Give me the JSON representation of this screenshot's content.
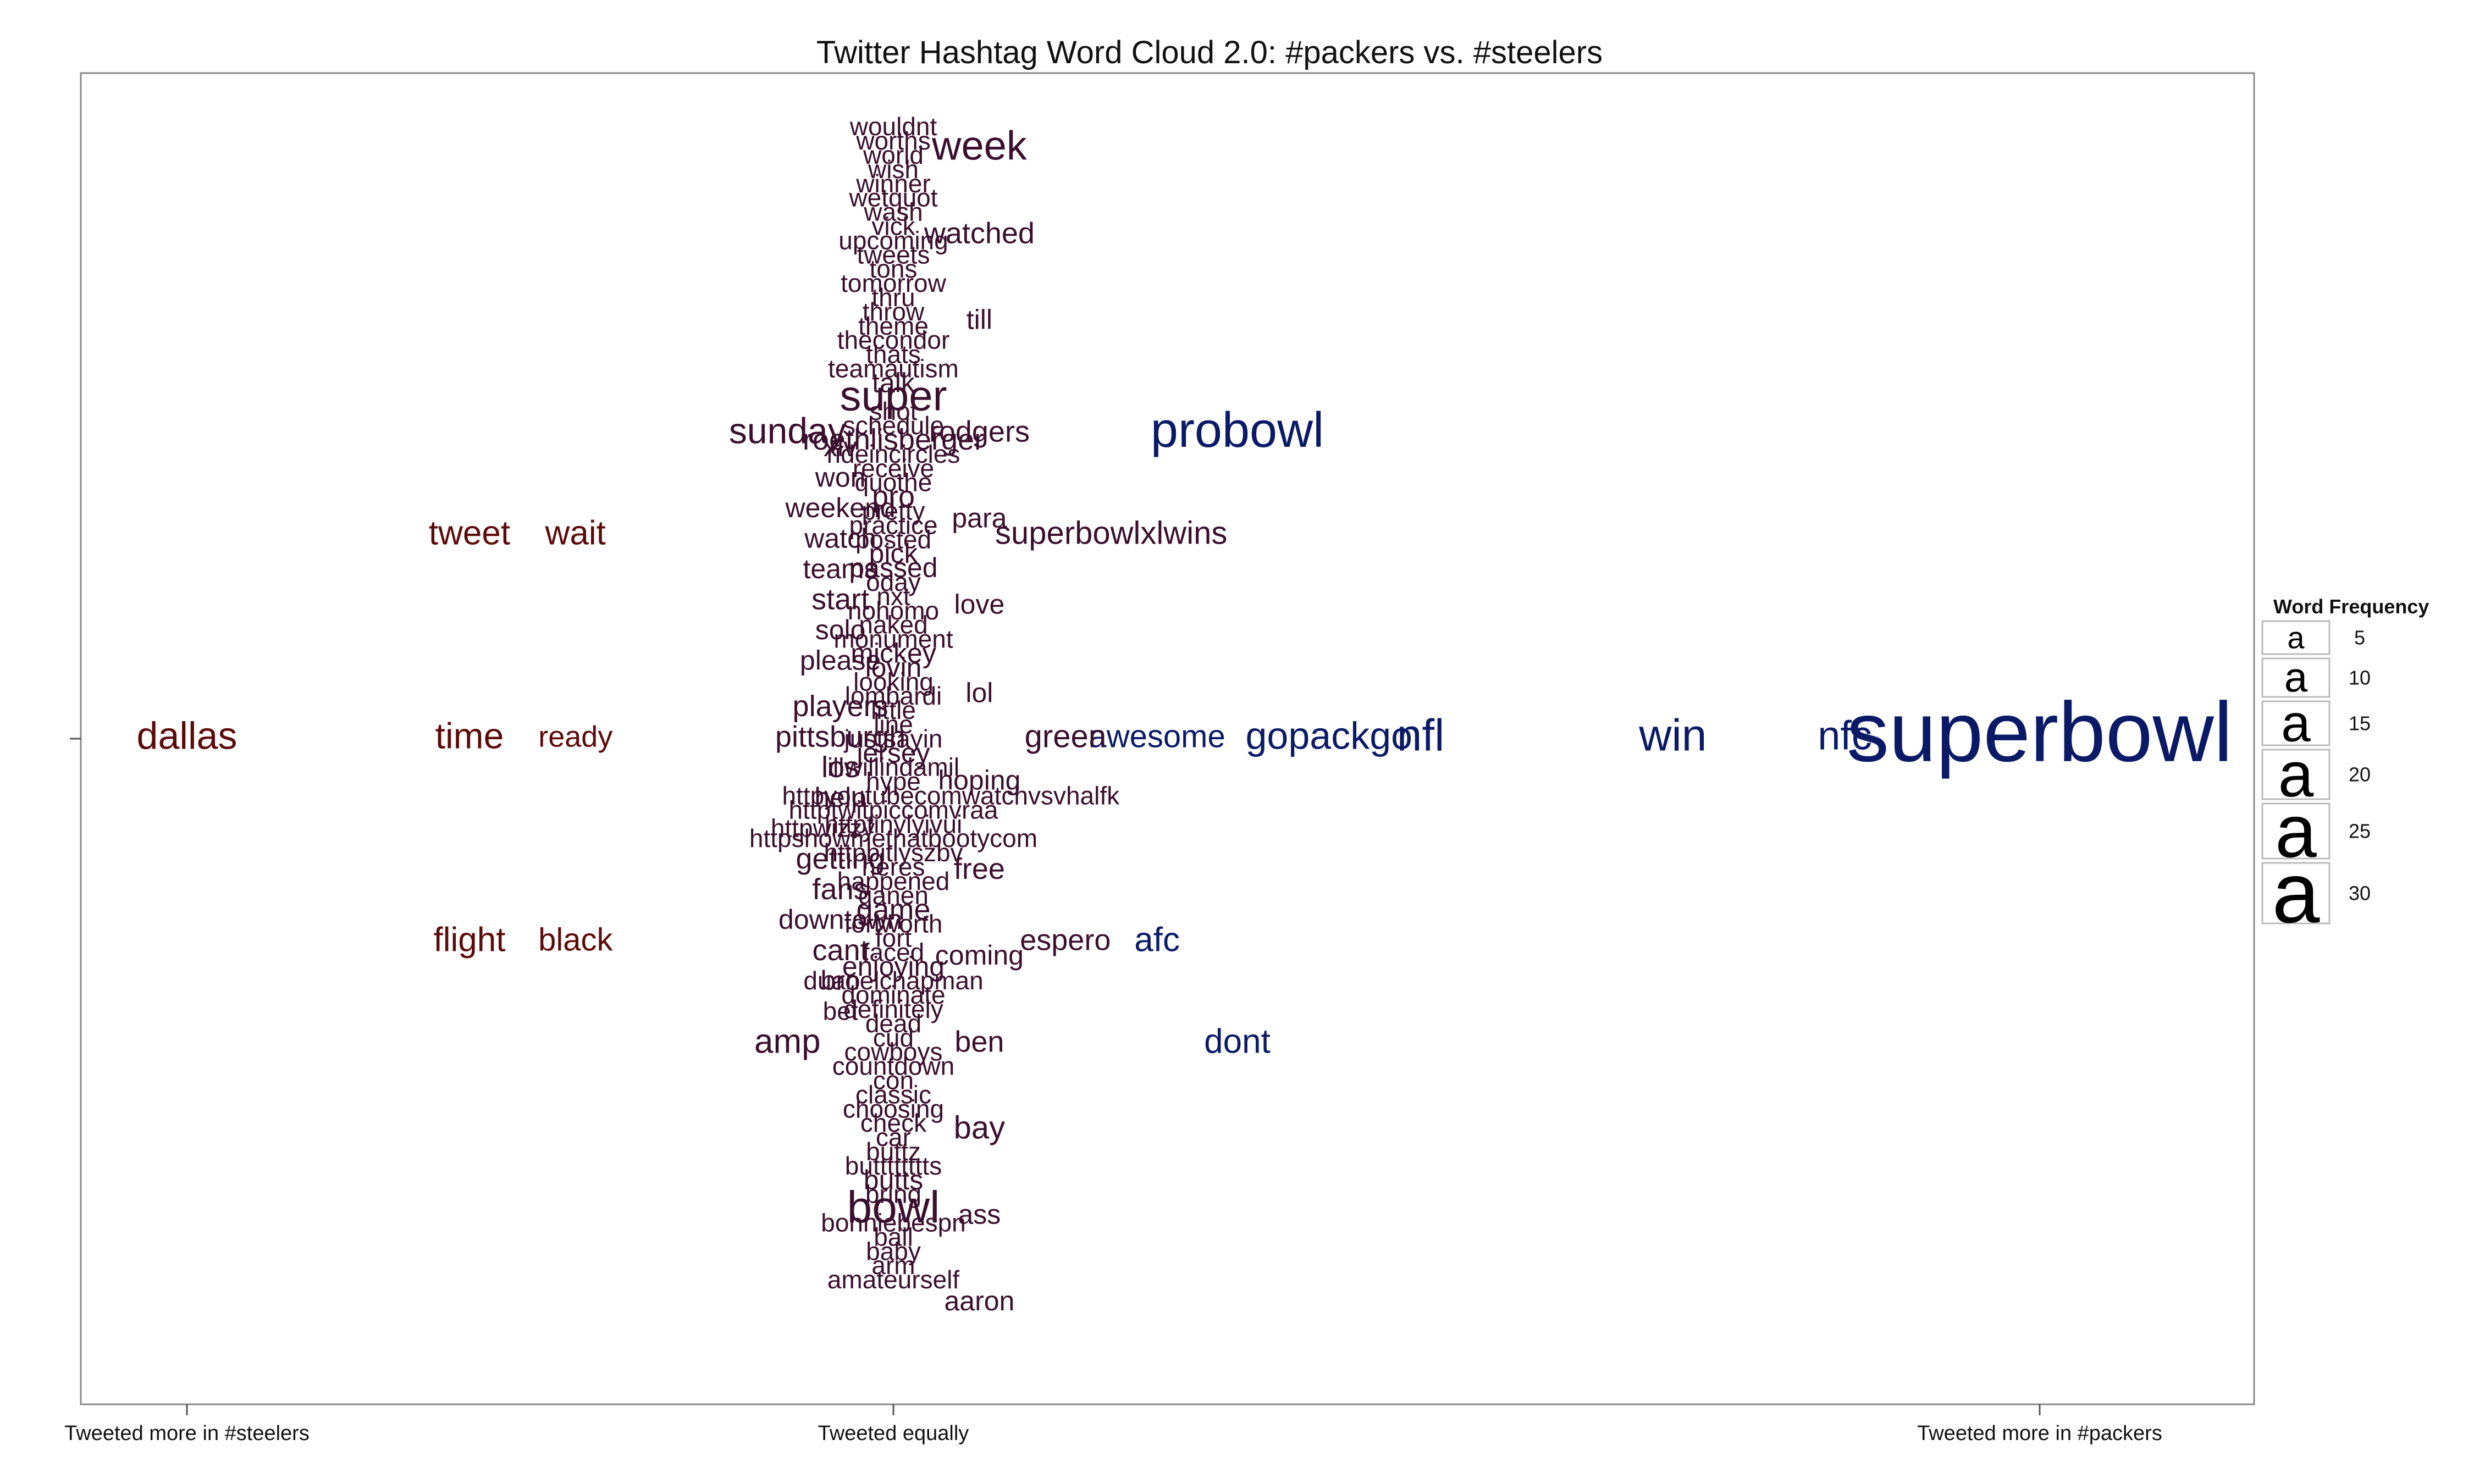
{
  "chart_data": {
    "type": "word_cloud",
    "title": "Twitter Hashtag Word Cloud 2.0: #packers vs. #steelers",
    "x_ticks": [
      "Tweeted more in #steelers",
      "Tweeted equally",
      "Tweeted more in #packers"
    ],
    "x_range": [
      -1,
      1
    ],
    "frame": "box",
    "legend": {
      "title": "Word Frequency",
      "placement": "right",
      "sample_glyph": "a",
      "entries": [
        5,
        10,
        15,
        20,
        25,
        30
      ]
    },
    "colors": {
      "steelers": "#5c0b0b",
      "equal": "#3b0f2e",
      "packers": "#0b1a66"
    },
    "words": [
      {
        "word": "superbowl",
        "x": 1.0,
        "y": 0,
        "freq": 33
      },
      {
        "word": "nfc",
        "x": 0.83,
        "y": 0,
        "freq": 13
      },
      {
        "word": "win",
        "x": 0.68,
        "y": 0,
        "freq": 15
      },
      {
        "word": "nfl",
        "x": 0.46,
        "y": 0,
        "freq": 15
      },
      {
        "word": "gopackgo",
        "x": 0.38,
        "y": 0,
        "freq": 12
      },
      {
        "word": "awesome",
        "x": 0.23,
        "y": 0,
        "freq": 9
      },
      {
        "word": "green",
        "x": 0.15,
        "y": 0,
        "freq": 9
      },
      {
        "word": "dallas",
        "x": -1.0,
        "y": 0,
        "freq": 12
      },
      {
        "word": "time",
        "x": -0.6,
        "y": 0,
        "freq": 11
      },
      {
        "word": "ready",
        "x": -0.45,
        "y": 0,
        "freq": 8
      },
      {
        "word": "probowl",
        "x": 0.3,
        "y": 3,
        "freq": 17
      },
      {
        "word": "sunday",
        "x": -0.15,
        "y": 3,
        "freq": 11
      },
      {
        "word": "tweet",
        "x": -0.6,
        "y": 2,
        "freq": 10
      },
      {
        "word": "wait",
        "x": -0.45,
        "y": 2,
        "freq": 10
      },
      {
        "word": "superbowlxlwins",
        "x": 0.19,
        "y": 2,
        "freq": 9
      },
      {
        "word": "flight",
        "x": -0.6,
        "y": -2,
        "freq": 10
      },
      {
        "word": "black",
        "x": -0.45,
        "y": -2,
        "freq": 9
      },
      {
        "word": "espero",
        "x": 0.15,
        "y": -2,
        "freq": 8
      },
      {
        "word": "afc",
        "x": 0.23,
        "y": -2,
        "freq": 10
      },
      {
        "word": "amp",
        "x": -0.15,
        "y": -3,
        "freq": 10
      },
      {
        "word": "dont",
        "x": 0.3,
        "y": -3,
        "freq": 10
      },
      {
        "word": "week",
        "x": 0.075,
        "y": 5.8,
        "freq": 13
      },
      {
        "word": "watched",
        "x": 0.075,
        "y": 4.95,
        "freq": 8
      },
      {
        "word": "till",
        "x": 0.075,
        "y": 4.1,
        "freq": 7
      },
      {
        "word": "rodgers",
        "x": 0.075,
        "y": 3.0,
        "freq": 8
      },
      {
        "word": "para",
        "x": 0.075,
        "y": 2.15,
        "freq": 7
      },
      {
        "word": "love",
        "x": 0.075,
        "y": 1.3,
        "freq": 7
      },
      {
        "word": "lol",
        "x": 0.075,
        "y": 0.43,
        "freq": 7
      },
      {
        "word": "hoping",
        "x": 0.075,
        "y": -0.43,
        "freq": 7
      },
      {
        "word": "free",
        "x": 0.075,
        "y": -1.3,
        "freq": 8
      },
      {
        "word": "coming",
        "x": 0.075,
        "y": -2.15,
        "freq": 7
      },
      {
        "word": "ben",
        "x": 0.075,
        "y": -3.0,
        "freq": 8
      },
      {
        "word": "bay",
        "x": 0.075,
        "y": -3.85,
        "freq": 9
      },
      {
        "word": "ass",
        "x": 0.075,
        "y": -4.7,
        "freq": 7
      },
      {
        "word": "aaron",
        "x": 0.075,
        "y": -5.55,
        "freq": 7
      },
      {
        "word": "xlv",
        "x": -0.075,
        "y": 2.85,
        "freq": 7
      },
      {
        "word": "won",
        "x": -0.075,
        "y": 2.55,
        "freq": 7
      },
      {
        "word": "weekend",
        "x": -0.075,
        "y": 2.25,
        "freq": 7
      },
      {
        "word": "watch",
        "x": -0.075,
        "y": 1.95,
        "freq": 7
      },
      {
        "word": "teams",
        "x": -0.075,
        "y": 1.65,
        "freq": 7
      },
      {
        "word": "start",
        "x": -0.075,
        "y": 1.35,
        "freq": 8
      },
      {
        "word": "solo",
        "x": -0.075,
        "y": 1.05,
        "freq": 7
      },
      {
        "word": "please",
        "x": -0.075,
        "y": 0.75,
        "freq": 7
      },
      {
        "word": "players",
        "x": -0.075,
        "y": 0.3,
        "freq": 8
      },
      {
        "word": "pittsburgh",
        "x": -0.075,
        "y": 0.0,
        "freq": 8
      },
      {
        "word": "los",
        "x": -0.075,
        "y": -0.3,
        "freq": 8
      },
      {
        "word": "help",
        "x": -0.075,
        "y": -0.6,
        "freq": 7
      },
      {
        "word": "httpwizzy",
        "x": -0.1,
        "y": -0.9,
        "freq": 6
      },
      {
        "word": "getting",
        "x": -0.075,
        "y": -1.2,
        "freq": 8
      },
      {
        "word": "fans",
        "x": -0.075,
        "y": -1.5,
        "freq": 8
      },
      {
        "word": "downtown",
        "x": -0.075,
        "y": -1.8,
        "freq": 7
      },
      {
        "word": "cant",
        "x": -0.075,
        "y": -2.1,
        "freq": 8
      },
      {
        "word": "bro",
        "x": -0.075,
        "y": -2.4,
        "freq": 7
      },
      {
        "word": "bet",
        "x": -0.075,
        "y": -2.7,
        "freq": 6
      },
      {
        "word": "wouldnt",
        "x": 0,
        "y": 6.0,
        "freq": 6
      },
      {
        "word": "worths",
        "x": 0,
        "y": 5.86,
        "freq": 6
      },
      {
        "word": "world",
        "x": 0,
        "y": 5.72,
        "freq": 6
      },
      {
        "word": "wish",
        "x": 0,
        "y": 5.58,
        "freq": 6
      },
      {
        "word": "winner",
        "x": 0,
        "y": 5.44,
        "freq": 6
      },
      {
        "word": "wetquot",
        "x": 0,
        "y": 5.3,
        "freq": 6
      },
      {
        "word": "wash",
        "x": 0,
        "y": 5.16,
        "freq": 6
      },
      {
        "word": "vick",
        "x": 0,
        "y": 5.02,
        "freq": 6
      },
      {
        "word": "upcoming",
        "x": 0,
        "y": 4.88,
        "freq": 6
      },
      {
        "word": "tweets",
        "x": 0,
        "y": 4.74,
        "freq": 6
      },
      {
        "word": "tons",
        "x": 0,
        "y": 4.6,
        "freq": 6
      },
      {
        "word": "tomorrow",
        "x": 0,
        "y": 4.46,
        "freq": 6
      },
      {
        "word": "thru",
        "x": 0,
        "y": 4.32,
        "freq": 6
      },
      {
        "word": "throw",
        "x": 0,
        "y": 4.18,
        "freq": 6
      },
      {
        "word": "theme",
        "x": 0,
        "y": 4.04,
        "freq": 6
      },
      {
        "word": "thecondor",
        "x": 0,
        "y": 3.9,
        "freq": 6
      },
      {
        "word": "thats",
        "x": 0,
        "y": 3.76,
        "freq": 6
      },
      {
        "word": "teamautism",
        "x": 0,
        "y": 3.62,
        "freq": 6
      },
      {
        "word": "talk",
        "x": 0,
        "y": 3.48,
        "freq": 7
      },
      {
        "word": "super",
        "x": 0,
        "y": 3.34,
        "freq": 14
      },
      {
        "word": "shot",
        "x": 0,
        "y": 3.2,
        "freq": 6
      },
      {
        "word": "schedule",
        "x": 0,
        "y": 3.06,
        "freq": 6
      },
      {
        "word": "roethlisberger",
        "x": 0,
        "y": 2.92,
        "freq": 8
      },
      {
        "word": "rideincircles",
        "x": 0,
        "y": 2.78,
        "freq": 6
      },
      {
        "word": "receive",
        "x": 0,
        "y": 2.64,
        "freq": 6
      },
      {
        "word": "quothe",
        "x": 0,
        "y": 2.5,
        "freq": 6
      },
      {
        "word": "pro",
        "x": 0,
        "y": 2.36,
        "freq": 8
      },
      {
        "word": "pretty",
        "x": 0,
        "y": 2.22,
        "freq": 6
      },
      {
        "word": "practice",
        "x": 0,
        "y": 2.08,
        "freq": 6
      },
      {
        "word": "posted",
        "x": 0,
        "y": 1.94,
        "freq": 6
      },
      {
        "word": "pick",
        "x": 0,
        "y": 1.8,
        "freq": 7
      },
      {
        "word": "passed",
        "x": 0,
        "y": 1.66,
        "freq": 7
      },
      {
        "word": "oday",
        "x": 0,
        "y": 1.52,
        "freq": 6
      },
      {
        "word": "nxt",
        "x": 0,
        "y": 1.38,
        "freq": 6
      },
      {
        "word": "nohomo",
        "x": 0,
        "y": 1.24,
        "freq": 6
      },
      {
        "word": "naked",
        "x": 0,
        "y": 1.1,
        "freq": 6
      },
      {
        "word": "monument",
        "x": 0,
        "y": 0.96,
        "freq": 6
      },
      {
        "word": "mickey",
        "x": 0,
        "y": 0.82,
        "freq": 7
      },
      {
        "word": "lovin",
        "x": 0,
        "y": 0.68,
        "freq": 7
      },
      {
        "word": "looking",
        "x": 0,
        "y": 0.54,
        "freq": 6
      },
      {
        "word": "lombardi",
        "x": 0,
        "y": 0.4,
        "freq": 6
      },
      {
        "word": "little",
        "x": 0,
        "y": 0.26,
        "freq": 6
      },
      {
        "word": "line",
        "x": 0,
        "y": 0.12,
        "freq": 6
      },
      {
        "word": "justsayin",
        "x": 0,
        "y": -0.02,
        "freq": 6
      },
      {
        "word": "jersey",
        "x": 0,
        "y": -0.16,
        "freq": 7
      },
      {
        "word": "illwillindamil",
        "x": 0,
        "y": -0.3,
        "freq": 6
      },
      {
        "word": "hype",
        "x": 0,
        "y": -0.44,
        "freq": 6
      },
      {
        "word": "httpyoutubecomwatchvsvhalfk",
        "x": 0.05,
        "y": -0.58,
        "freq": 6
      },
      {
        "word": "httptwitpiccomvraa",
        "x": 0,
        "y": -0.72,
        "freq": 6
      },
      {
        "word": "httptinylyivui",
        "x": 0,
        "y": -0.86,
        "freq": 6
      },
      {
        "word": "httpshowmethatbootycom",
        "x": 0,
        "y": -1.0,
        "freq": 6
      },
      {
        "word": "httpbitlyszbv",
        "x": 0,
        "y": -1.14,
        "freq": 6
      },
      {
        "word": "heres",
        "x": 0,
        "y": -1.28,
        "freq": 6
      },
      {
        "word": "happened",
        "x": 0,
        "y": -1.42,
        "freq": 6
      },
      {
        "word": "ganen",
        "x": 0,
        "y": -1.56,
        "freq": 6
      },
      {
        "word": "game",
        "x": 0,
        "y": -1.7,
        "freq": 8
      },
      {
        "word": "fortworth",
        "x": 0,
        "y": -1.84,
        "freq": 6
      },
      {
        "word": "fort",
        "x": 0,
        "y": -1.98,
        "freq": 6
      },
      {
        "word": "faced",
        "x": 0,
        "y": -2.12,
        "freq": 6
      },
      {
        "word": "enjoying",
        "x": 0,
        "y": -2.26,
        "freq": 7
      },
      {
        "word": "duanelchapman",
        "x": 0,
        "y": -2.4,
        "freq": 6
      },
      {
        "word": "dominate",
        "x": 0,
        "y": -2.54,
        "freq": 6
      },
      {
        "word": "definitely",
        "x": 0,
        "y": -2.68,
        "freq": 6
      },
      {
        "word": "dead",
        "x": 0,
        "y": -2.82,
        "freq": 6
      },
      {
        "word": "cud",
        "x": 0,
        "y": -2.96,
        "freq": 6
      },
      {
        "word": "cowboys",
        "x": 0,
        "y": -3.1,
        "freq": 6
      },
      {
        "word": "countdown",
        "x": 0,
        "y": -3.24,
        "freq": 6
      },
      {
        "word": "con",
        "x": 0,
        "y": -3.38,
        "freq": 6
      },
      {
        "word": "classic",
        "x": 0,
        "y": -3.52,
        "freq": 6
      },
      {
        "word": "choosing",
        "x": 0,
        "y": -3.66,
        "freq": 6
      },
      {
        "word": "check",
        "x": 0,
        "y": -3.8,
        "freq": 6
      },
      {
        "word": "car",
        "x": 0,
        "y": -3.94,
        "freq": 6
      },
      {
        "word": "buttz",
        "x": 0,
        "y": -4.08,
        "freq": 6
      },
      {
        "word": "butttttttts",
        "x": 0,
        "y": -4.22,
        "freq": 6
      },
      {
        "word": "butts",
        "x": 0,
        "y": -4.36,
        "freq": 7
      },
      {
        "word": "bring",
        "x": 0,
        "y": -4.5,
        "freq": 6
      },
      {
        "word": "bowl",
        "x": 0,
        "y": -4.64,
        "freq": 15
      },
      {
        "word": "bonniebespn",
        "x": 0,
        "y": -4.78,
        "freq": 6
      },
      {
        "word": "ball",
        "x": 0,
        "y": -4.92,
        "freq": 6
      },
      {
        "word": "baby",
        "x": 0,
        "y": -5.06,
        "freq": 6
      },
      {
        "word": "arm",
        "x": 0,
        "y": -5.2,
        "freq": 6
      },
      {
        "word": "amateurself",
        "x": 0,
        "y": -5.34,
        "freq": 6
      }
    ]
  }
}
